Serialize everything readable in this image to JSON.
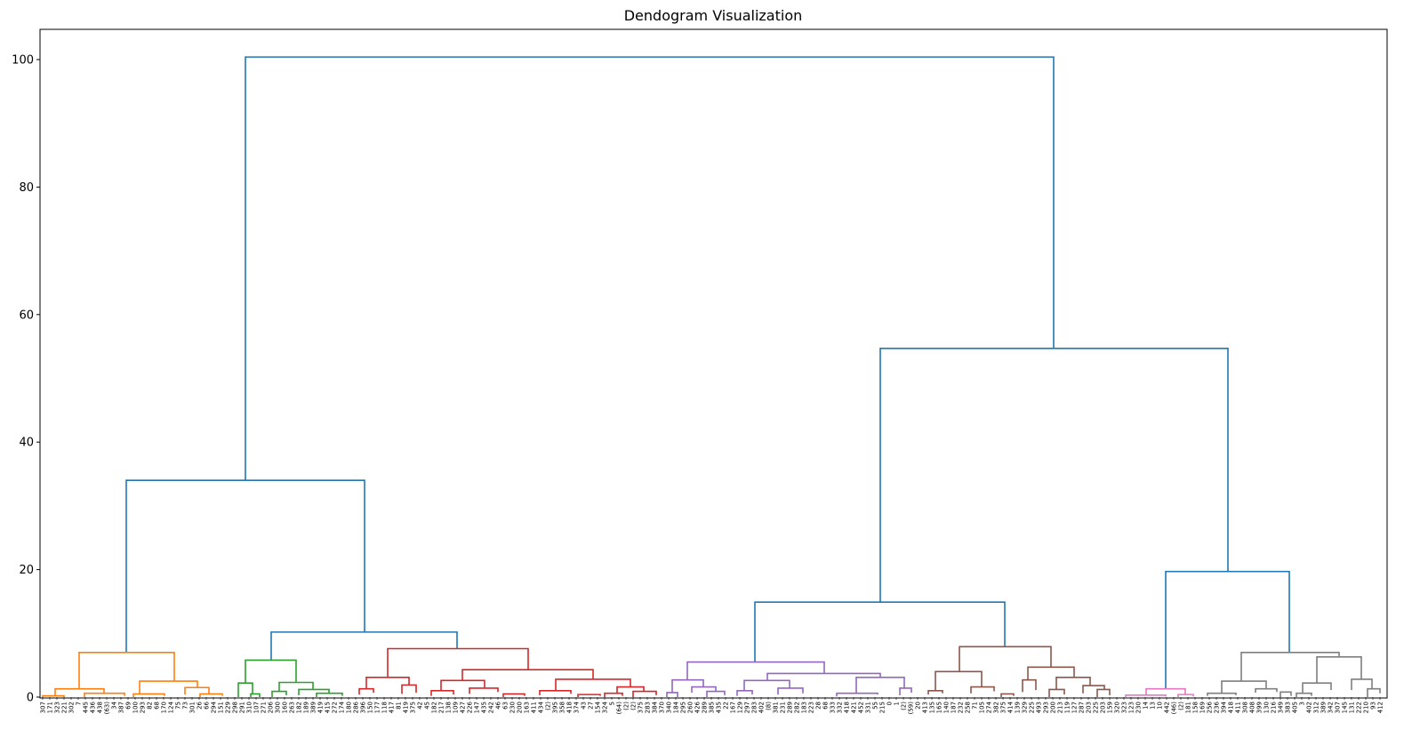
{
  "chart_data": {
    "type": "dendrogram",
    "title": "Dendogram Visualization",
    "xlabel": "",
    "ylabel": "",
    "ylim": [
      0,
      105
    ],
    "yticks": [
      0,
      20,
      40,
      60,
      80,
      100
    ],
    "grid": false,
    "colors": {
      "above_threshold": "#1f77b4",
      "clusters": [
        "#ff7f0e",
        "#2ca02c",
        "#d62728",
        "#9467bd",
        "#8c564b",
        "#e377c2",
        "#7f7f7f"
      ]
    },
    "leaf_labels": [
      "307",
      "171",
      "323",
      "221",
      "302",
      "7",
      "445",
      "436",
      "438",
      "(63)",
      "34",
      "387",
      "69",
      "100",
      "293",
      "82",
      "68",
      "170",
      "124",
      "75",
      "73",
      "301",
      "26",
      "66",
      "294",
      "151",
      "229",
      "298",
      "291",
      "310",
      "107",
      "271",
      "206",
      "300",
      "160",
      "263",
      "182",
      "189",
      "389",
      "419",
      "415",
      "272",
      "174",
      "180",
      "286",
      "396",
      "150",
      "177",
      "118",
      "417",
      "81",
      "419",
      "375",
      "42",
      "45",
      "182",
      "217",
      "138",
      "109",
      "427",
      "226",
      "147",
      "435",
      "242",
      "46",
      "63",
      "230",
      "200",
      "163",
      "411",
      "434",
      "(2)",
      "395",
      "358",
      "418",
      "374",
      "43",
      "27",
      "154",
      "324",
      "5",
      "(64)",
      "(2)",
      "(2)",
      "375",
      "283",
      "384",
      "370",
      "340",
      "184",
      "295",
      "260",
      "426",
      "289",
      "385",
      "435",
      "22",
      "167",
      "129",
      "297",
      "283",
      "402",
      "(8)",
      "381",
      "231",
      "289",
      "282",
      "183",
      "223",
      "28",
      "68",
      "333",
      "332",
      "418",
      "421",
      "452",
      "331",
      "55",
      "215",
      "0",
      "1",
      "(2)",
      "(59)",
      "20",
      "413",
      "135",
      "165",
      "140",
      "187",
      "232",
      "258",
      "71",
      "105",
      "274",
      "382",
      "375",
      "414",
      "139",
      "329",
      "225",
      "493",
      "293",
      "200",
      "213",
      "119",
      "127",
      "287",
      "203",
      "225",
      "203",
      "159",
      "320",
      "323",
      "123",
      "230",
      "14",
      "13",
      "10",
      "442",
      "(46)",
      "(2)",
      "181",
      "158",
      "169",
      "256",
      "236",
      "394",
      "418",
      "411",
      "308",
      "408",
      "399",
      "130",
      "216",
      "349",
      "383",
      "405",
      "3",
      "402",
      "312",
      "389",
      "342",
      "307",
      "145",
      "131",
      "222",
      "210",
      "93",
      "412"
    ],
    "merges": [
      {
        "x": [
          276,
          276,
          1185,
          1185
        ],
        "y": [
          34.0,
          100.4,
          100.4,
          54.7
        ],
        "cluster": -1
      },
      {
        "x": [
          142,
          142,
          410,
          410
        ],
        "y": [
          7.0,
          34.0,
          34.0,
          10.2
        ],
        "cluster": -1
      },
      {
        "x": [
          305,
          305,
          514,
          514
        ],
        "y": [
          5.8,
          10.2,
          10.2,
          7.6
        ],
        "cluster": -1
      },
      {
        "x": [
          990,
          990,
          1381,
          1381
        ],
        "y": [
          14.9,
          54.7,
          54.7,
          19.7
        ],
        "cluster": -1
      },
      {
        "x": [
          849,
          849,
          1130,
          1130
        ],
        "y": [
          5.5,
          14.9,
          14.9,
          7.9
        ],
        "cluster": -1
      },
      {
        "x": [
          1311,
          1311,
          1450,
          1450
        ],
        "y": [
          1.3,
          19.7,
          19.7,
          7.0
        ],
        "cluster": -1
      },
      {
        "x": [
          62,
          62,
          117,
          117
        ],
        "y": [
          0.2,
          1.3,
          1.3,
          0.6
        ],
        "cluster": 0
      },
      {
        "x": [
          89,
          89,
          196,
          196
        ],
        "y": [
          1.3,
          7.0,
          7.0,
          2.5
        ],
        "cluster": 0
      },
      {
        "x": [
          157,
          157,
          222,
          222
        ],
        "y": [
          0.5,
          2.5,
          2.5,
          1.5
        ],
        "cluster": 0
      },
      {
        "x": [
          208,
          208,
          235,
          235
        ],
        "y": [
          0.4,
          1.5,
          1.5,
          0.5
        ],
        "cluster": 0
      },
      {
        "x": [
          48,
          48,
          72,
          72
        ],
        "y": [
          0.0,
          0.2,
          0.2,
          0.0
        ],
        "cluster": 0
      },
      {
        "x": [
          95,
          95,
          140,
          140
        ],
        "y": [
          0.0,
          0.6,
          0.6,
          0.2
        ],
        "cluster": 0
      },
      {
        "x": [
          150,
          150,
          185,
          185
        ],
        "y": [
          0.0,
          0.5,
          0.5,
          0.2
        ],
        "cluster": 0
      },
      {
        "x": [
          225,
          225,
          250,
          250
        ],
        "y": [
          0.0,
          0.5,
          0.5,
          0.2
        ],
        "cluster": 0
      },
      {
        "x": [
          268,
          268,
          284,
          284
        ],
        "y": [
          0.0,
          2.2,
          2.2,
          0.5
        ],
        "cluster": 1
      },
      {
        "x": [
          276,
          276,
          333,
          333
        ],
        "y": [
          2.2,
          5.8,
          5.8,
          2.3
        ],
        "cluster": 1
      },
      {
        "x": [
          314,
          314,
          352,
          352
        ],
        "y": [
          0.9,
          2.3,
          2.3,
          1.2
        ],
        "cluster": 1
      },
      {
        "x": [
          336,
          336,
          370,
          370
        ],
        "y": [
          0.3,
          1.2,
          1.2,
          0.6
        ],
        "cluster": 1
      },
      {
        "x": [
          356,
          356,
          385,
          385
        ],
        "y": [
          0.0,
          0.6,
          0.6,
          0.2
        ],
        "cluster": 1
      },
      {
        "x": [
          306,
          306,
          322,
          322
        ],
        "y": [
          0.0,
          0.9,
          0.9,
          0.3
        ],
        "cluster": 1
      },
      {
        "x": [
          282,
          282,
          292,
          292
        ],
        "y": [
          0.0,
          0.5,
          0.5,
          0.0
        ],
        "cluster": 1
      },
      {
        "x": [
          412,
          412,
          460,
          460
        ],
        "y": [
          1.3,
          3.1,
          3.1,
          1.9
        ],
        "cluster": 2
      },
      {
        "x": [
          436,
          436,
          594,
          594
        ],
        "y": [
          3.1,
          7.6,
          7.6,
          4.3
        ],
        "cluster": 2
      },
      {
        "x": [
          520,
          520,
          667,
          667
        ],
        "y": [
          2.6,
          4.3,
          4.3,
          2.8
        ],
        "cluster": 2
      },
      {
        "x": [
          404,
          404,
          420,
          420
        ],
        "y": [
          0.4,
          1.3,
          1.3,
          0.7
        ],
        "cluster": 2
      },
      {
        "x": [
          452,
          452,
          468,
          468
        ],
        "y": [
          0.5,
          1.9,
          1.9,
          0.7
        ],
        "cluster": 2
      },
      {
        "x": [
          496,
          496,
          545,
          545
        ],
        "y": [
          1.0,
          2.6,
          2.6,
          1.4
        ],
        "cluster": 2
      },
      {
        "x": [
          528,
          528,
          560,
          560
        ],
        "y": [
          0.5,
          1.4,
          1.4,
          0.8
        ],
        "cluster": 2
      },
      {
        "x": [
          485,
          485,
          510,
          510
        ],
        "y": [
          0.2,
          1.0,
          1.0,
          0.4
        ],
        "cluster": 2
      },
      {
        "x": [
          625,
          625,
          709,
          709
        ],
        "y": [
          1.0,
          2.8,
          2.8,
          1.6
        ],
        "cluster": 2
      },
      {
        "x": [
          607,
          607,
          642,
          642
        ],
        "y": [
          0.3,
          1.0,
          1.0,
          0.5
        ],
        "cluster": 2
      },
      {
        "x": [
          694,
          694,
          724,
          724
        ],
        "y": [
          0.6,
          1.6,
          1.6,
          0.9
        ],
        "cluster": 2
      },
      {
        "x": [
          566,
          566,
          590,
          590
        ],
        "y": [
          0.0,
          0.5,
          0.5,
          0.2
        ],
        "cluster": 2
      },
      {
        "x": [
          650,
          650,
          675,
          675
        ],
        "y": [
          0.0,
          0.4,
          0.4,
          0.2
        ],
        "cluster": 2
      },
      {
        "x": [
          680,
          680,
          700,
          700
        ],
        "y": [
          0.0,
          0.6,
          0.6,
          0.2
        ],
        "cluster": 2
      },
      {
        "x": [
          712,
          712,
          738,
          738
        ],
        "y": [
          0.0,
          0.9,
          0.9,
          0.3
        ],
        "cluster": 2
      },
      {
        "x": [
          773,
          773,
          927,
          927
        ],
        "y": [
          2.7,
          5.5,
          5.5,
          3.7
        ],
        "cluster": 3
      },
      {
        "x": [
          756,
          756,
          791,
          791
        ],
        "y": [
          0.7,
          2.7,
          2.7,
          1.6
        ],
        "cluster": 3
      },
      {
        "x": [
          778,
          778,
          805,
          805
        ],
        "y": [
          0.7,
          1.6,
          1.6,
          0.9
        ],
        "cluster": 3
      },
      {
        "x": [
          863,
          863,
          990,
          990
        ],
        "y": [
          2.6,
          3.7,
          3.7,
          3.1
        ],
        "cluster": 3
      },
      {
        "x": [
          837,
          837,
          888,
          888
        ],
        "y": [
          1.0,
          2.6,
          2.6,
          1.4
        ],
        "cluster": 3
      },
      {
        "x": [
          875,
          875,
          903,
          903
        ],
        "y": [
          0.4,
          1.4,
          1.4,
          0.6
        ],
        "cluster": 3
      },
      {
        "x": [
          829,
          829,
          846,
          846
        ],
        "y": [
          0.2,
          1.0,
          1.0,
          0.4
        ],
        "cluster": 3
      },
      {
        "x": [
          963,
          963,
          1017,
          1017
        ],
        "y": [
          0.6,
          3.1,
          3.1,
          1.4
        ],
        "cluster": 3
      },
      {
        "x": [
          941,
          941,
          987,
          987
        ],
        "y": [
          0.1,
          0.6,
          0.6,
          0.4
        ],
        "cluster": 3
      },
      {
        "x": [
          1012,
          1012,
          1025,
          1025
        ],
        "y": [
          0.3,
          1.4,
          1.4,
          0.7
        ],
        "cluster": 3
      },
      {
        "x": [
          750,
          750,
          762,
          762
        ],
        "y": [
          0.0,
          0.7,
          0.7,
          0.0
        ],
        "cluster": 3
      },
      {
        "x": [
          795,
          795,
          815,
          815
        ],
        "y": [
          0.0,
          0.9,
          0.9,
          0.3
        ],
        "cluster": 3
      },
      {
        "x": [
          1052,
          1052,
          1104,
          1104
        ],
        "y": [
          1.0,
          4.0,
          4.0,
          1.6
        ],
        "cluster": 4
      },
      {
        "x": [
          1079,
          1079,
          1182,
          1182
        ],
        "y": [
          4.0,
          7.9,
          7.9,
          4.7
        ],
        "cluster": 4
      },
      {
        "x": [
          1044,
          1044,
          1060,
          1060
        ],
        "y": [
          0.4,
          1.0,
          1.0,
          0.6
        ],
        "cluster": 4
      },
      {
        "x": [
          1092,
          1092,
          1118,
          1118
        ],
        "y": [
          0.6,
          1.6,
          1.6,
          0.9
        ],
        "cluster": 4
      },
      {
        "x": [
          1156,
          1156,
          1208,
          1208
        ],
        "y": [
          2.7,
          4.7,
          4.7,
          3.1
        ],
        "cluster": 4
      },
      {
        "x": [
          1150,
          1150,
          1165,
          1165
        ],
        "y": [
          0.8,
          2.7,
          2.7,
          1.1
        ],
        "cluster": 4
      },
      {
        "x": [
          1188,
          1188,
          1226,
          1226
        ],
        "y": [
          1.2,
          3.1,
          3.1,
          1.8
        ],
        "cluster": 4
      },
      {
        "x": [
          1218,
          1218,
          1242,
          1242
        ],
        "y": [
          0.6,
          1.8,
          1.8,
          1.2
        ],
        "cluster": 4
      },
      {
        "x": [
          1126,
          1126,
          1140,
          1140
        ],
        "y": [
          0.0,
          0.5,
          0.5,
          0.2
        ],
        "cluster": 4
      },
      {
        "x": [
          1180,
          1180,
          1197,
          1197
        ],
        "y": [
          0.0,
          1.2,
          1.2,
          0.4
        ],
        "cluster": 4
      },
      {
        "x": [
          1234,
          1234,
          1248,
          1248
        ],
        "y": [
          0.0,
          1.2,
          1.2,
          0.3
        ],
        "cluster": 4
      },
      {
        "x": [
          1266,
          1266,
          1311,
          1311
        ],
        "y": [
          0.0,
          0.3,
          0.3,
          0.1
        ],
        "cluster": 5
      },
      {
        "x": [
          1289,
          1289,
          1333,
          1333
        ],
        "y": [
          0.3,
          1.3,
          1.3,
          0.4
        ],
        "cluster": 5
      },
      {
        "x": [
          1325,
          1325,
          1342,
          1342
        ],
        "y": [
          0.0,
          0.4,
          0.4,
          0.1
        ],
        "cluster": 5
      },
      {
        "x": [
          1374,
          1374,
          1424,
          1424
        ],
        "y": [
          0.6,
          2.5,
          2.5,
          1.3
        ],
        "cluster": 6
      },
      {
        "x": [
          1396,
          1396,
          1506,
          1506
        ],
        "y": [
          2.5,
          7.0,
          7.0,
          6.3
        ],
        "cluster": 6
      },
      {
        "x": [
          1358,
          1358,
          1390,
          1390
        ],
        "y": [
          0.2,
          0.6,
          0.6,
          0.3
        ],
        "cluster": 6
      },
      {
        "x": [
          1412,
          1412,
          1436,
          1436
        ],
        "y": [
          0.7,
          1.3,
          1.3,
          0.8
        ],
        "cluster": 6
      },
      {
        "x": [
          1481,
          1481,
          1531,
          1531
        ],
        "y": [
          2.2,
          6.3,
          6.3,
          2.8
        ],
        "cluster": 6
      },
      {
        "x": [
          1465,
          1465,
          1497,
          1497
        ],
        "y": [
          0.6,
          2.2,
          2.2,
          1.1
        ],
        "cluster": 6
      },
      {
        "x": [
          1520,
          1520,
          1543,
          1543
        ],
        "y": [
          1.1,
          2.8,
          2.8,
          1.3
        ],
        "cluster": 6
      },
      {
        "x": [
          1458,
          1458,
          1475,
          1475
        ],
        "y": [
          0.0,
          0.6,
          0.6,
          0.2
        ],
        "cluster": 6
      },
      {
        "x": [
          1538,
          1538,
          1552,
          1552
        ],
        "y": [
          0.0,
          1.3,
          1.3,
          0.6
        ],
        "cluster": 6
      },
      {
        "x": [
          1440,
          1440,
          1452,
          1452
        ],
        "y": [
          0.0,
          0.8,
          0.8,
          0.2
        ],
        "cluster": 6
      }
    ]
  }
}
